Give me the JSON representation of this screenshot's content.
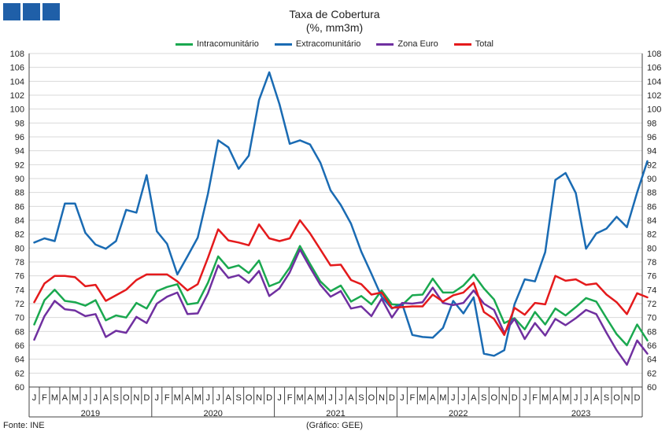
{
  "title": "Taxa de Cobertura",
  "subtitle": "(%, mm3m)",
  "source": "Fonte: INE",
  "credit": "(Gráfico: GEE)",
  "chart_data": {
    "type": "line",
    "title": "Taxa de Cobertura",
    "subtitle": "(%, mm3m)",
    "ylim": [
      60,
      108
    ],
    "yticks": [
      60,
      62,
      64,
      66,
      68,
      70,
      72,
      74,
      76,
      78,
      80,
      82,
      84,
      86,
      88,
      90,
      92,
      94,
      96,
      98,
      100,
      102,
      104,
      106,
      108
    ],
    "grid": true,
    "legend": "top-center",
    "months": [
      "J",
      "F",
      "M",
      "A",
      "M",
      "J",
      "J",
      "A",
      "S",
      "O",
      "N",
      "D"
    ],
    "years": [
      "2019",
      "2020",
      "2021",
      "2022",
      "2023"
    ],
    "series": [
      {
        "name": "Intracomunitário",
        "color": "#1aa84f",
        "values": [
          69.0,
          72.5,
          74.0,
          72.4,
          72.2,
          71.7,
          72.5,
          69.6,
          70.3,
          70.0,
          72.1,
          71.3,
          73.8,
          74.4,
          74.8,
          71.9,
          72.1,
          75.0,
          78.8,
          77.1,
          77.5,
          76.4,
          78.2,
          74.5,
          75.1,
          77.2,
          80.3,
          77.7,
          75.2,
          73.8,
          74.6,
          72.3,
          73.1,
          71.9,
          73.9,
          71.9,
          71.8,
          73.2,
          73.3,
          75.6,
          73.6,
          73.6,
          74.6,
          76.2,
          74.2,
          72.6,
          69.2,
          69.9,
          68.3,
          70.8,
          69.0,
          71.3,
          70.3,
          71.5,
          72.8,
          72.3,
          69.9,
          67.6,
          66.0,
          69.0,
          66.7
        ]
      },
      {
        "name": "Extracomunitário",
        "color": "#1a6bb3",
        "values": [
          80.8,
          81.4,
          81.0,
          86.4,
          86.4,
          82.2,
          80.5,
          79.9,
          81.0,
          85.5,
          85.1,
          90.5,
          82.4,
          80.6,
          76.2,
          78.8,
          81.5,
          87.8,
          95.5,
          94.5,
          91.4,
          93.3,
          101.3,
          105.3,
          100.7,
          95.0,
          95.5,
          94.9,
          92.3,
          88.3,
          86.2,
          83.5,
          79.5,
          76.3,
          73.0,
          71.3,
          72.0,
          67.5,
          67.2,
          67.1,
          68.5,
          72.4,
          70.6,
          72.9,
          64.8,
          64.5,
          65.3,
          71.9,
          75.5,
          75.2,
          79.4,
          89.8,
          90.8,
          87.9,
          79.9,
          82.1,
          82.8,
          84.5,
          83.0,
          88.0,
          92.5
        ]
      },
      {
        "name": "Zona Euro",
        "color": "#7030a0",
        "values": [
          66.8,
          70.2,
          72.4,
          71.2,
          71.0,
          70.2,
          70.5,
          67.2,
          68.1,
          67.8,
          70.1,
          69.2,
          72.0,
          73.0,
          73.6,
          70.5,
          70.6,
          73.5,
          77.5,
          75.7,
          76.1,
          75.0,
          76.7,
          73.1,
          74.2,
          76.5,
          79.8,
          77.2,
          74.7,
          73.0,
          73.8,
          71.3,
          71.6,
          70.2,
          72.7,
          70.0,
          72.1,
          72.0,
          72.2,
          74.3,
          72.1,
          71.8,
          72.1,
          73.9,
          72.0,
          71.1,
          67.8,
          69.8,
          66.9,
          69.2,
          67.4,
          69.8,
          68.9,
          69.9,
          71.1,
          70.5,
          67.8,
          65.3,
          63.2,
          66.7,
          64.8
        ]
      },
      {
        "name": "Total",
        "color": "#e41a1c",
        "values": [
          72.2,
          74.9,
          76.0,
          76.0,
          75.8,
          74.5,
          74.7,
          72.4,
          73.2,
          74.0,
          75.4,
          76.2,
          76.2,
          76.2,
          75.2,
          73.9,
          74.8,
          78.6,
          82.7,
          81.1,
          80.8,
          80.4,
          83.4,
          81.4,
          81.0,
          81.4,
          84.0,
          82.1,
          79.8,
          77.5,
          77.6,
          75.4,
          74.8,
          73.3,
          73.6,
          71.4,
          71.5,
          71.6,
          71.6,
          73.3,
          72.3,
          73.2,
          73.6,
          75.0,
          70.8,
          69.8,
          67.5,
          71.4,
          70.4,
          72.1,
          71.9,
          76.0,
          75.3,
          75.5,
          74.7,
          74.9,
          73.3,
          72.2,
          70.5,
          73.5,
          72.9
        ]
      }
    ]
  }
}
